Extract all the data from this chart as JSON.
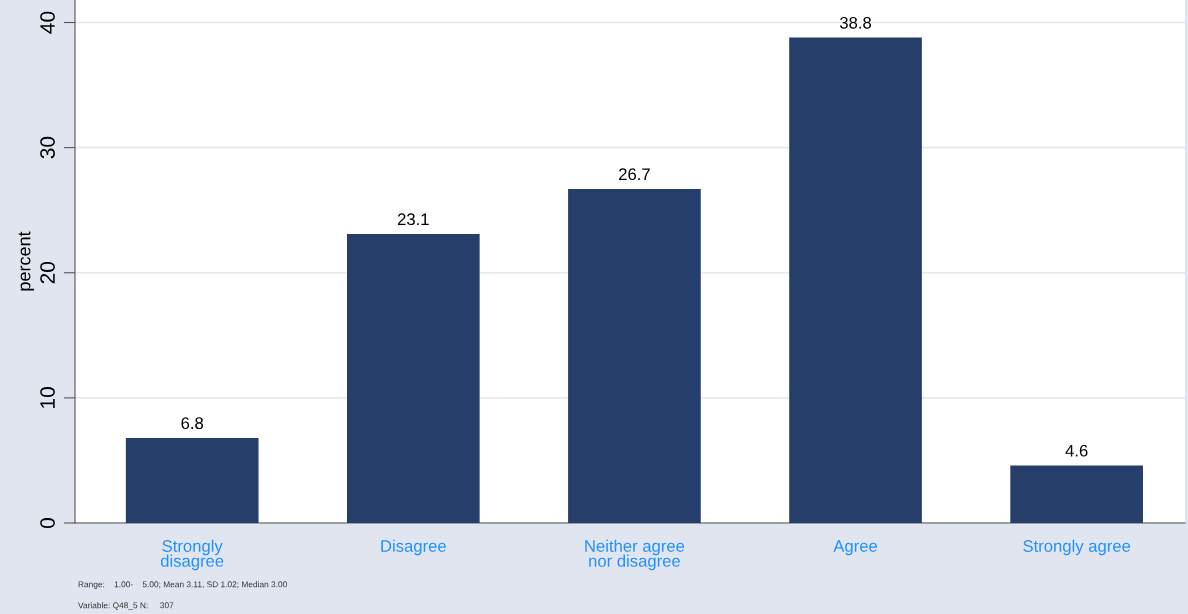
{
  "chart_data": {
    "type": "bar",
    "ylabel": "percent",
    "categories": [
      "Strongly\ndisagree",
      "Disagree",
      "Neither agree\nnor disagree",
      "Agree",
      "Strongly agree"
    ],
    "values": [
      6.8,
      23.1,
      26.7,
      38.8,
      4.6
    ],
    "color": "#263f6a",
    "data_labels": true,
    "ylim": [
      0,
      41.8
    ],
    "yticks": [
      0,
      10,
      20,
      30,
      40
    ],
    "grid": "y",
    "legend": false,
    "annotations": [
      "Range:    1.00-    5.00; Mean 3.11, SD 1.02; Median 3.00",
      "Variable: Q48_5 N:     307"
    ]
  }
}
